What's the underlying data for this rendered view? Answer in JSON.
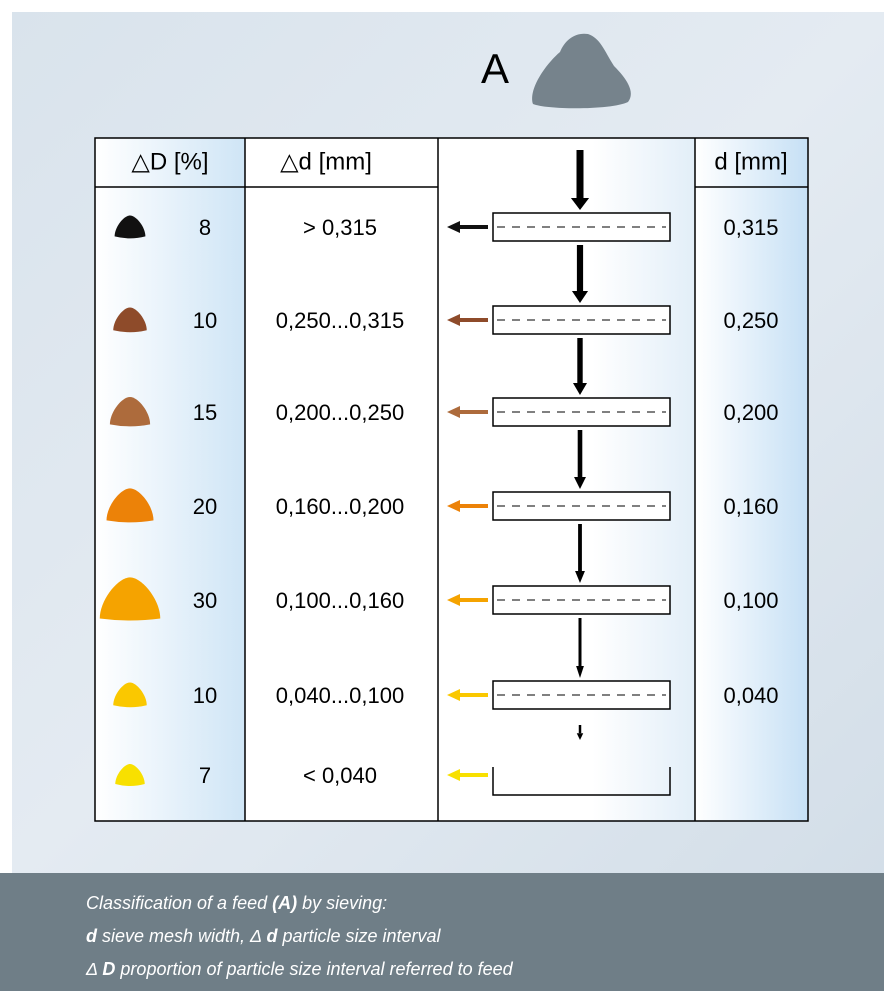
{
  "feed_label": "A",
  "table": {
    "headers": [
      "△D [%]",
      "△d [mm]",
      "d [mm]"
    ],
    "rows": [
      {
        "proportion": "8",
        "interval": "> 0,315",
        "mesh": "0,315",
        "color": "#111111"
      },
      {
        "proportion": "10",
        "interval": "0,250...0,315",
        "mesh": "0,250",
        "color": "#8e4b2a"
      },
      {
        "proportion": "15",
        "interval": "0,200...0,250",
        "mesh": "0,200",
        "color": "#ad6b3c"
      },
      {
        "proportion": "20",
        "interval": "0,160...0,200",
        "mesh": "0,160",
        "color": "#ec8208"
      },
      {
        "proportion": "30",
        "interval": "0,100...0,160",
        "mesh": "0,100",
        "color": "#f5a300"
      },
      {
        "proportion": "10",
        "interval": "0,040...0,100",
        "mesh": "0,040",
        "color": "#fac800"
      },
      {
        "proportion": "7",
        "interval": "< 0,040",
        "color": "#f8e000"
      }
    ]
  },
  "caption": [
    [
      "Classification of a feed ",
      "(A)",
      " by sieving:"
    ],
    [
      "d",
      " sieve mesh width, Δ ",
      "d",
      " particle size interval"
    ],
    [
      "Δ ",
      "D",
      " proportion of particle size interval referred to feed"
    ]
  ]
}
